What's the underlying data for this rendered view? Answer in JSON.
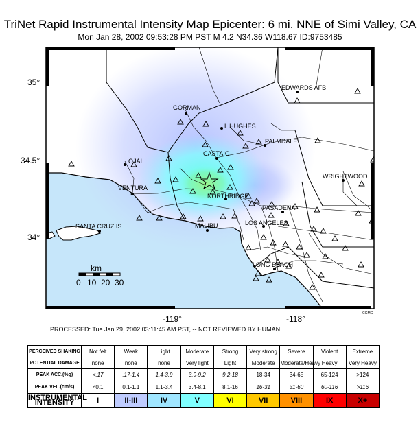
{
  "header": {
    "title": "TriNet Rapid Instrumental Intensity Map Epicenter: 6 mi. NNE of Simi Valley, CA",
    "subtitle": "Mon Jan 28, 2002 09:53:28 PM PST   M 4.2   N34.36 W118.67    ID:9753485"
  },
  "map": {
    "lat_labels": [
      "35°",
      "34.5°",
      "34°"
    ],
    "lon_labels": [
      "-119°",
      "-118°"
    ],
    "credit": "CGMG",
    "scale_bar": {
      "unit": "km",
      "ticks": [
        "0",
        "10",
        "20",
        "30"
      ]
    },
    "places": [
      {
        "id": "edwards",
        "label": "EDWARDS AFB"
      },
      {
        "id": "gorman",
        "label": "GORMAN"
      },
      {
        "id": "lhughes",
        "label": "L HUGHES"
      },
      {
        "id": "palmdale",
        "label": "PALMDALE"
      },
      {
        "id": "castaic",
        "label": "CASTAIC"
      },
      {
        "id": "ojai",
        "label": "OJAI"
      },
      {
        "id": "wrightwood",
        "label": "WRIGHTWOOD"
      },
      {
        "id": "ventura",
        "label": "VENTURA"
      },
      {
        "id": "northridge",
        "label": "NORTHRIDGE"
      },
      {
        "id": "pasadena",
        "label": "PASADENA"
      },
      {
        "id": "santacruz",
        "label": "SANTA CRUZ IS."
      },
      {
        "id": "malibu",
        "label": "MALIBU"
      },
      {
        "id": "losangeles",
        "label": "LOS ANGELES"
      },
      {
        "id": "longbeach",
        "label": "LONG BEACH"
      }
    ],
    "colors": {
      "ocean": "#c6e6fa",
      "land": "#ffffff",
      "weak": "#c8c8ff",
      "light": "#80ffff",
      "moderate": "#7ef895"
    }
  },
  "processed_note": "PROCESSED: Tue Jan 29, 2002 03:11:45 AM PST, -- NOT REVIEWED BY HUMAN",
  "legend": {
    "rows": [
      {
        "head": "PERCEIVED SHAKING",
        "cells": [
          "Not felt",
          "Weak",
          "Light",
          "Moderate",
          "Strong",
          "Very strong",
          "Severe",
          "Violent",
          "Extreme"
        ]
      },
      {
        "head": "POTENTIAL DAMAGE",
        "cells": [
          "none",
          "none",
          "none",
          "Very light",
          "Light",
          "Moderate",
          "Moderate/Heavy",
          "Heavy",
          "Very Heavy"
        ]
      },
      {
        "head": "PEAK ACC.(%g)",
        "cells": [
          "<.17",
          ".17-1.4",
          "1.4-3.9",
          "3.9-9.2",
          "9.2-18",
          "18-34",
          "34-65",
          "65-124",
          ">124"
        ]
      },
      {
        "head": "PEAK VEL.(cm/s)",
        "cells": [
          "<0.1",
          "0.1-1.1",
          "1.1-3.4",
          "3.4-8.1",
          "8.1-16",
          "16-31",
          "31-60",
          "60-116",
          ">116"
        ]
      },
      {
        "head": "INSTRUMENTAL INTENSITY",
        "cells": [
          "I",
          "II-III",
          "IV",
          "V",
          "VI",
          "VII",
          "VIII",
          "IX",
          "X+"
        ]
      }
    ],
    "intensity_colors": [
      "#ffffff",
      "#bfccff",
      "#a0e6ff",
      "#80ffff",
      "#ffff00",
      "#ffc800",
      "#ff9100",
      "#ff0000",
      "#c80000"
    ]
  }
}
